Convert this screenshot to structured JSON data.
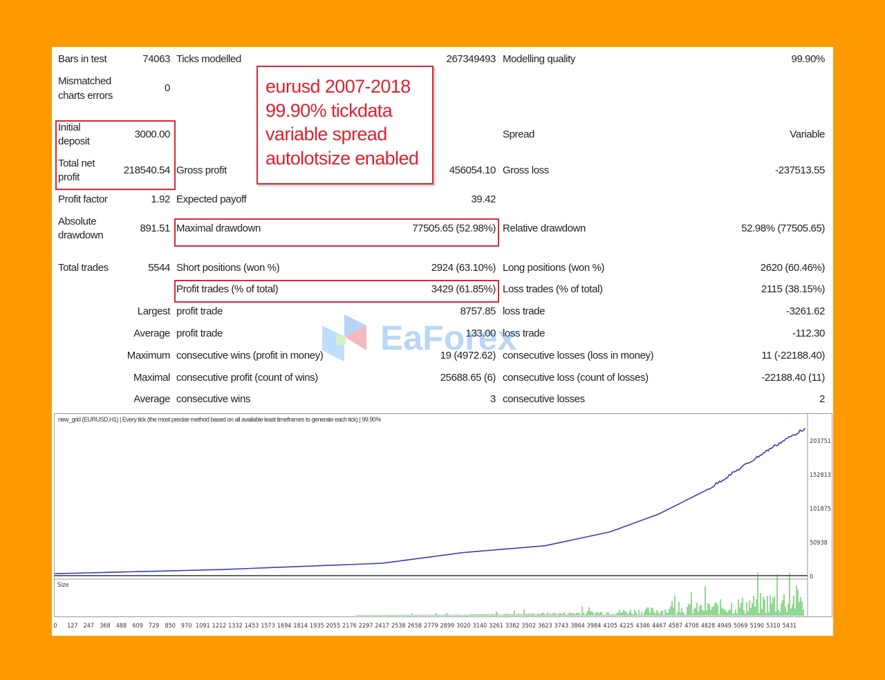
{
  "report": {
    "bars_label": "Bars in test",
    "bars_value": "74063",
    "ticks_label": "Ticks modelled",
    "ticks_value": "267349493",
    "quality_label": "Modelling quality",
    "quality_value": "99.90%",
    "mismatch_label_1": "Mismatched",
    "mismatch_label_2": "charts errors",
    "mismatch_value": "0",
    "deposit_label_1": "Initial",
    "deposit_label_2": "deposit",
    "deposit_value": "3000.00",
    "spread_label": "Spread",
    "spread_value": "Variable",
    "net_label_1": "Total net",
    "net_label_2": "profit",
    "net_value": "218540.54",
    "gross_profit_label": "Gross profit",
    "gross_profit_value": "456054.10",
    "gross_loss_label": "Gross loss",
    "gross_loss_value": "-237513.55",
    "pf_label": "Profit factor",
    "pf_value": "1.92",
    "ep_label": "Expected payoff",
    "ep_value": "39.42",
    "abs_dd_label_1": "Absolute",
    "abs_dd_label_2": "drawdown",
    "abs_dd_value": "891.51",
    "max_dd_label": "Maximal drawdown",
    "max_dd_value": "77505.65 (52.98%)",
    "rel_dd_label": "Relative drawdown",
    "rel_dd_value": "52.98% (77505.65)",
    "trades_label": "Total trades",
    "trades_value": "5544",
    "short_label": "Short positions (won %)",
    "short_value": "2924 (63.10%)",
    "long_label": "Long positions (won %)",
    "long_value": "2620 (60.46%)",
    "pt_label": "Profit trades (% of total)",
    "pt_value": "3429 (61.85%)",
    "lt_label": "Loss trades (% of total)",
    "lt_value": "2115 (38.15%)",
    "largest": "Largest",
    "lp_label": "profit trade",
    "lp_value": "8757.85",
    "ll_label": "loss trade",
    "ll_value": "-3261.62",
    "average": "Average",
    "ap_label": "profit trade",
    "ap_value": "133.00",
    "al_label": "loss trade",
    "al_value": "-112.30",
    "maximum": "Maximum",
    "mcw_label": "consecutive wins (profit in money)",
    "mcw_value": "19 (4972.62)",
    "mcl_label": "consecutive losses (loss in money)",
    "mcl_value": "11 (-22188.40)",
    "maximal": "Maximal",
    "mcp_label": "consecutive profit (count of wins)",
    "mcp_value": "25688.65 (6)",
    "mcloss_label": "consecutive loss (count of losses)",
    "mcloss_value": "-22188.40 (11)",
    "average2": "Average",
    "acw_label": "consecutive wins",
    "acw_value": "3",
    "acl_label": "consecutive losses",
    "acl_value": "2"
  },
  "annotation": [
    "eurusd 2007-2018",
    "99.90% tickdata",
    "variable spread",
    "autolotsize enabled"
  ],
  "watermark": "EaForex",
  "colors": {
    "frame": "#FF9900",
    "highlight": "#d9263a",
    "balance": "#3b3bbf",
    "volume": "#22b322"
  },
  "chart_data": {
    "type": "line",
    "title": "new_grid (EURUSD,H1) | Every tick (the most precise method based on all available least timeframes to generate each tick) | 99.90%",
    "size_label": "Size",
    "y_ticks": [
      "203751",
      "152813",
      "101875",
      "50938",
      "0"
    ],
    "y_tick_values": [
      203751,
      152813,
      101875,
      50938,
      0
    ],
    "x_ticks": [
      "0",
      "127",
      "247",
      "368",
      "488",
      "609",
      "729",
      "850",
      "970",
      "1091",
      "1212",
      "1332",
      "1453",
      "1573",
      "1694",
      "1814",
      "1935",
      "2055",
      "2176",
      "2297",
      "2417",
      "2538",
      "2658",
      "2779",
      "2899",
      "3020",
      "3140",
      "3261",
      "3382",
      "3502",
      "3623",
      "3743",
      "3864",
      "3984",
      "4105",
      "4225",
      "4346",
      "4467",
      "4587",
      "4708",
      "4828",
      "4949",
      "5069",
      "5190",
      "5310",
      "5431"
    ],
    "xlim": [
      0,
      5544
    ],
    "ylim": [
      0,
      221540
    ],
    "series": [
      {
        "x": [
          0,
          1200,
          2417,
          3020,
          3623,
          4105,
          4467,
          4828,
          5069,
          5310,
          5544
        ],
        "y": [
          3000,
          9000,
          18600,
          34800,
          45000,
          66000,
          93000,
          130000,
          162000,
          194000,
          221540
        ]
      }
    ]
  }
}
